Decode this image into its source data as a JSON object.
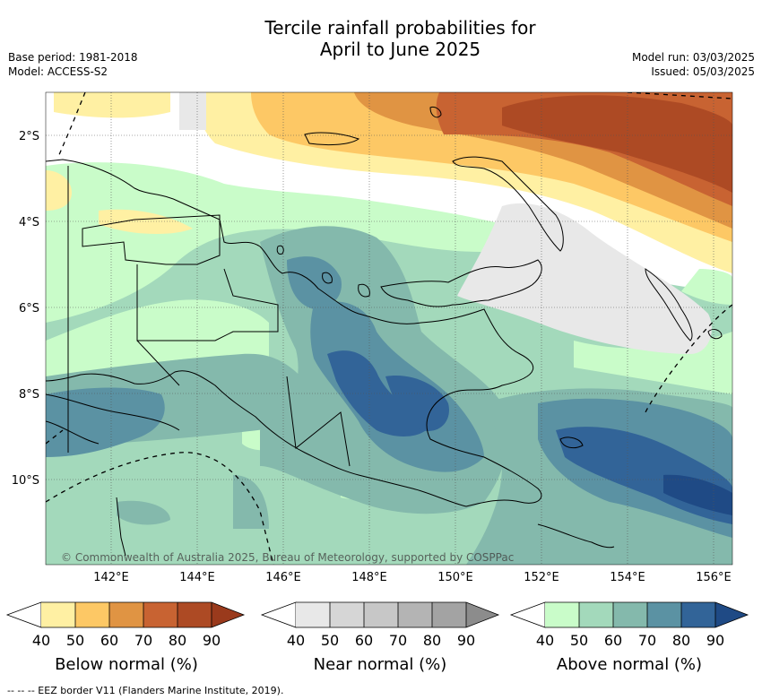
{
  "header": {
    "title_line1": "Tercile rainfall probabilities for",
    "title_line2": "April to June 2025",
    "base_period": "Base period: 1981-2018",
    "model": "Model: ACCESS-S2",
    "model_run": "Model run: 03/03/2025",
    "issued": "Issued: 05/03/2025"
  },
  "map": {
    "lat_labels": [
      "2°S",
      "4°S",
      "6°S",
      "8°S",
      "10°S"
    ],
    "lon_labels": [
      "142°E",
      "144°E",
      "146°E",
      "148°E",
      "150°E",
      "152°E",
      "154°E",
      "156°E"
    ],
    "copyright": "© Commonwealth of Australia 2025, Bureau of Meteorology, supported by COSPPac"
  },
  "colorbars": [
    {
      "label": "Below normal (%)",
      "ticks": [
        "40",
        "50",
        "60",
        "70",
        "80",
        "90"
      ],
      "colors": [
        "#fff0a3",
        "#fdc865",
        "#e09443",
        "#c86332",
        "#ad4a24",
        "#9a3a1c"
      ]
    },
    {
      "label": "Near normal (%)",
      "ticks": [
        "40",
        "50",
        "60",
        "70",
        "80",
        "90"
      ],
      "colors": [
        "#e8e8e8",
        "#d6d6d6",
        "#c7c7c7",
        "#b4b4b4",
        "#a3a3a3",
        "#8c8c8c"
      ]
    },
    {
      "label": "Above normal (%)",
      "ticks": [
        "40",
        "50",
        "60",
        "70",
        "80",
        "90"
      ],
      "colors": [
        "#c9fcc9",
        "#a3d9bb",
        "#84b9ac",
        "#5b92a3",
        "#326498",
        "#1f4a85"
      ]
    }
  ],
  "footer": {
    "eez_note": "-- -- -- EEZ border V11 (Flanders Marine Institute, 2019)."
  }
}
